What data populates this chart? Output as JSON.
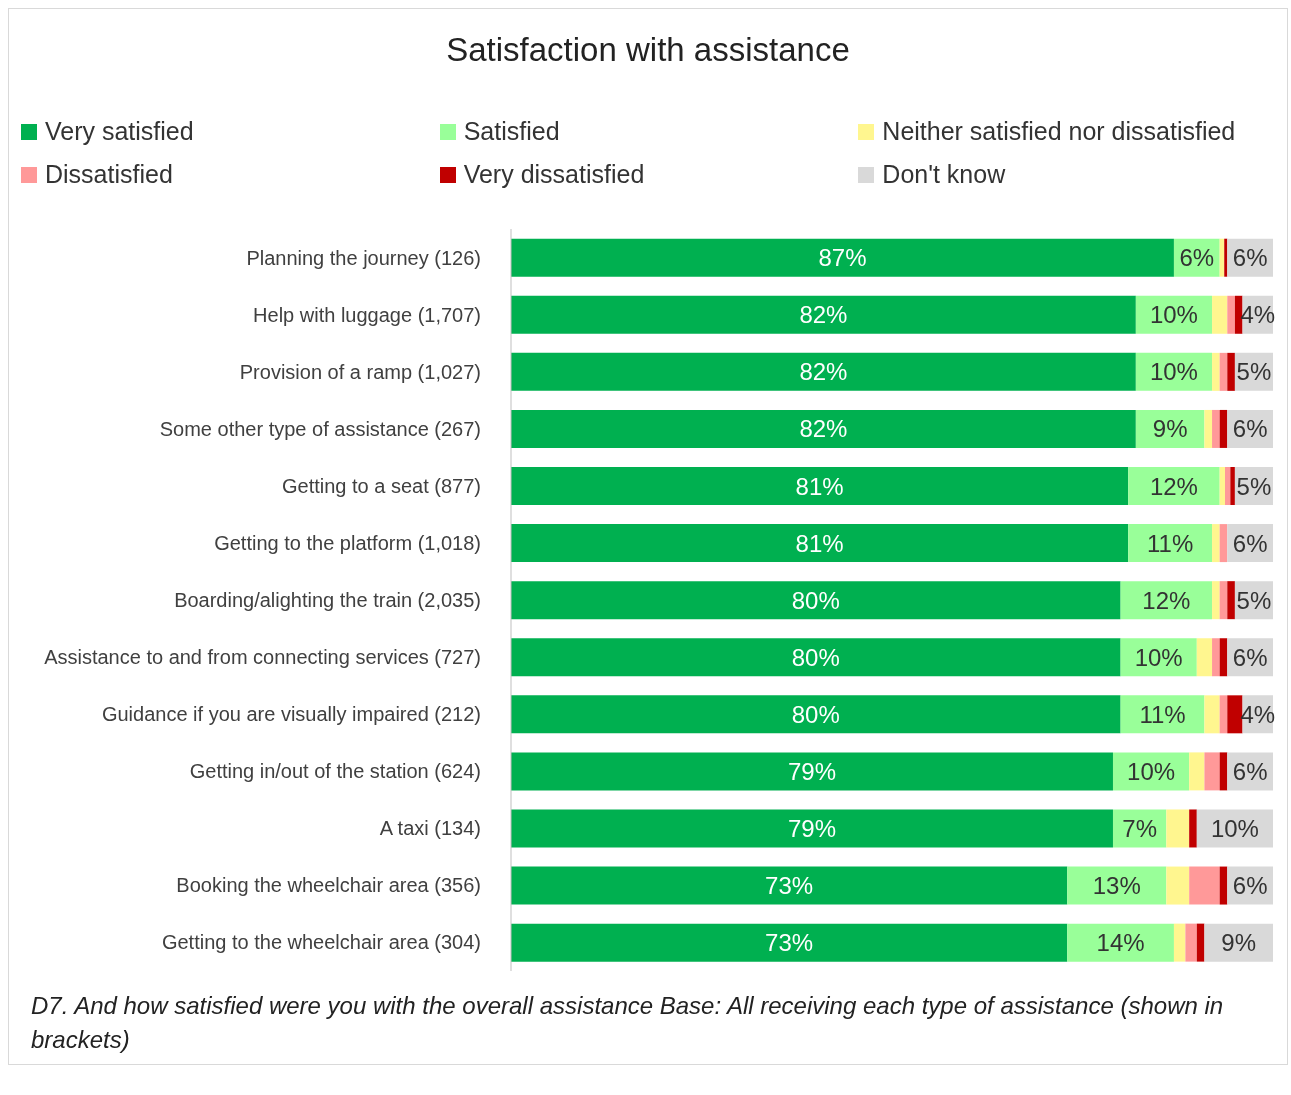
{
  "chart_data": {
    "type": "bar",
    "title": "Satisfaction with assistance",
    "orientation": "horizontal",
    "stacked": true,
    "legend": "top",
    "categories": [
      "Planning the journey (126)",
      "Help with luggage (1,707)",
      "Provision of a ramp (1,027)",
      "Some other type of assistance (267)",
      "Getting to a seat (877)",
      "Getting to the platform (1,018)",
      "Boarding/alighting the train (2,035)",
      "Assistance to and from connecting services (727)",
      "Guidance if you are visually impaired (212)",
      "Getting in/out of the station (624)",
      "A taxi (134)",
      "Booking the wheelchair area (356)",
      "Getting to the wheelchair area (304)"
    ],
    "series": [
      {
        "name": "Very satisfied",
        "color": "#00b050",
        "values": [
          87,
          82,
          82,
          82,
          81,
          81,
          80,
          80,
          80,
          79,
          79,
          73,
          73
        ],
        "value_labels": [
          "87%",
          "82%",
          "82%",
          "82%",
          "81%",
          "81%",
          "80%",
          "80%",
          "80%",
          "79%",
          "79%",
          "73%",
          "73%"
        ]
      },
      {
        "name": "Satisfied",
        "color": "#99ff99",
        "values": [
          6,
          10,
          10,
          9,
          12,
          11,
          12,
          10,
          11,
          10,
          7,
          13,
          14
        ],
        "value_labels": [
          "6%",
          "10%",
          "10%",
          "9%",
          "12%",
          "11%",
          "12%",
          "10%",
          "11%",
          "10%",
          "7%",
          "13%",
          "14%"
        ]
      },
      {
        "name": "Neither satisfied nor dissatisfied",
        "color": "#fff68f",
        "values": [
          0.6,
          2,
          1,
          1,
          0.7,
          1,
          1,
          2,
          2,
          2,
          3,
          3,
          1.5
        ]
      },
      {
        "name": "Dissatisfied",
        "color": "#ff9999",
        "values": [
          0,
          1,
          1,
          1,
          0.7,
          1,
          1,
          1,
          1,
          2,
          0,
          4,
          1.5
        ]
      },
      {
        "name": "Very dissatisfied",
        "color": "#c00000",
        "values": [
          0.4,
          1,
          1,
          1,
          0.6,
          0,
          1,
          1,
          2,
          1,
          1,
          1,
          1
        ]
      },
      {
        "name": "Don't know",
        "color": "#d9d9d9",
        "values": [
          6,
          4,
          5,
          6,
          5,
          6,
          5,
          6,
          4,
          6,
          10,
          6,
          9
        ],
        "value_labels": [
          "6%",
          "4%",
          "5%",
          "6%",
          "5%",
          "6%",
          "5%",
          "6%",
          "4%",
          "6%",
          "10%",
          "6%",
          "9%"
        ]
      }
    ],
    "annotations": [
      "D7. And how satisfied were you with the overall assistance Base: All receiving each type of assistance (shown in brackets)"
    ]
  }
}
